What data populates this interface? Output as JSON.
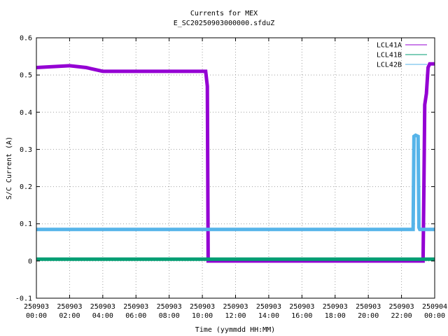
{
  "chart_data": {
    "type": "line",
    "title": "Currents for MEX",
    "subtitle": "E_SC20250903000000.sfduZ",
    "xlabel": "Time (yymmdd HH:MM)",
    "ylabel": "S/C Current (A)",
    "xlim": [
      0,
      24
    ],
    "ylim": [
      -0.1,
      0.6
    ],
    "grid": true,
    "legend_position": "top-right",
    "x_ticks": [
      {
        "value": 0,
        "line1": "250903",
        "line2": "00:00"
      },
      {
        "value": 2,
        "line1": "250903",
        "line2": "02:00"
      },
      {
        "value": 4,
        "line1": "250903",
        "line2": "04:00"
      },
      {
        "value": 6,
        "line1": "250903",
        "line2": "06:00"
      },
      {
        "value": 8,
        "line1": "250903",
        "line2": "08:00"
      },
      {
        "value": 10,
        "line1": "250903",
        "line2": "10:00"
      },
      {
        "value": 12,
        "line1": "250903",
        "line2": "12:00"
      },
      {
        "value": 14,
        "line1": "250903",
        "line2": "14:00"
      },
      {
        "value": 16,
        "line1": "250903",
        "line2": "16:00"
      },
      {
        "value": 18,
        "line1": "250903",
        "line2": "18:00"
      },
      {
        "value": 20,
        "line1": "250903",
        "line2": "20:00"
      },
      {
        "value": 22,
        "line1": "250903",
        "line2": "22:00"
      },
      {
        "value": 24,
        "line1": "250904",
        "line2": "00:00"
      }
    ],
    "y_ticks": [
      {
        "value": -0.1,
        "label": "-0.1"
      },
      {
        "value": 0,
        "label": "0"
      },
      {
        "value": 0.1,
        "label": "0.1"
      },
      {
        "value": 0.2,
        "label": "0.2"
      },
      {
        "value": 0.3,
        "label": "0.3"
      },
      {
        "value": 0.4,
        "label": "0.4"
      },
      {
        "value": 0.5,
        "label": "0.5"
      },
      {
        "value": 0.6,
        "label": "0.6"
      }
    ],
    "series": [
      {
        "name": "LCL41A",
        "color": "#9400d3",
        "points": [
          [
            0,
            0.52
          ],
          [
            2,
            0.525
          ],
          [
            3,
            0.52
          ],
          [
            4,
            0.51
          ],
          [
            6,
            0.51
          ],
          [
            8,
            0.51
          ],
          [
            10,
            0.51
          ],
          [
            10.2,
            0.51
          ],
          [
            10.3,
            0.47
          ],
          [
            10.35,
            0.0
          ],
          [
            12,
            0.0
          ],
          [
            14,
            0.0
          ],
          [
            16,
            0.0
          ],
          [
            18,
            0.0
          ],
          [
            20,
            0.0
          ],
          [
            22,
            0.0
          ],
          [
            23.3,
            0.0
          ],
          [
            23.35,
            0.2
          ],
          [
            23.4,
            0.42
          ],
          [
            23.5,
            0.45
          ],
          [
            23.6,
            0.52
          ],
          [
            23.7,
            0.53
          ],
          [
            24,
            0.53
          ]
        ]
      },
      {
        "name": "LCL41B",
        "color": "#009e73",
        "points": [
          [
            0,
            0.005
          ],
          [
            2,
            0.005
          ],
          [
            4,
            0.005
          ],
          [
            6,
            0.005
          ],
          [
            8,
            0.005
          ],
          [
            10,
            0.005
          ],
          [
            12,
            0.005
          ],
          [
            14,
            0.005
          ],
          [
            16,
            0.005
          ],
          [
            18,
            0.005
          ],
          [
            20,
            0.005
          ],
          [
            22,
            0.005
          ],
          [
            24,
            0.005
          ]
        ]
      },
      {
        "name": "LCL42B",
        "color": "#56b4e9",
        "points": [
          [
            0,
            0.085
          ],
          [
            2,
            0.085
          ],
          [
            4,
            0.085
          ],
          [
            6,
            0.085
          ],
          [
            8,
            0.085
          ],
          [
            10,
            0.085
          ],
          [
            12,
            0.085
          ],
          [
            14,
            0.085
          ],
          [
            16,
            0.085
          ],
          [
            18,
            0.085
          ],
          [
            20,
            0.085
          ],
          [
            22,
            0.085
          ],
          [
            22.7,
            0.085
          ],
          [
            22.75,
            0.335
          ],
          [
            22.85,
            0.338
          ],
          [
            23.0,
            0.335
          ],
          [
            23.05,
            0.09
          ],
          [
            23.1,
            0.085
          ],
          [
            24,
            0.085
          ]
        ]
      }
    ]
  }
}
